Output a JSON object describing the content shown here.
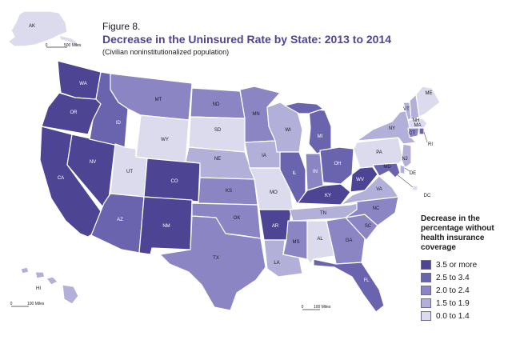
{
  "figure": {
    "label": "Figure 8.",
    "title": "Decrease in the Uninsured Rate by State: 2013 to 2014",
    "subtitle": "(Civilian noninstitutionalized population)"
  },
  "legend": {
    "title_lines": [
      "Decrease in the",
      "percentage without",
      "health insurance",
      "coverage"
    ],
    "items": [
      {
        "label": "3.5 or more",
        "color": "#4d4593"
      },
      {
        "label": "2.5 to 3.4",
        "color": "#6a63ad"
      },
      {
        "label": "2.0 to 2.4",
        "color": "#8b86c3"
      },
      {
        "label": "1.5 to 1.9",
        "color": "#b2afd8"
      },
      {
        "label": "0.0 to 1.4",
        "color": "#dcdbee"
      }
    ]
  },
  "scales": {
    "alaska": "500 Miles",
    "hawaii": "100 Miles",
    "mainland": "100 Miles",
    "zero": "0"
  },
  "states": {
    "AK": {
      "abbr": "AK",
      "class": 4
    },
    "HI": {
      "abbr": "HI",
      "class": 3
    },
    "WA": {
      "abbr": "WA",
      "class": 0
    },
    "OR": {
      "abbr": "OR",
      "class": 0
    },
    "CA": {
      "abbr": "CA",
      "class": 0
    },
    "NV": {
      "abbr": "NV",
      "class": 0
    },
    "ID": {
      "abbr": "ID",
      "class": 1
    },
    "MT": {
      "abbr": "MT",
      "class": 2
    },
    "WY": {
      "abbr": "WY",
      "class": 4
    },
    "UT": {
      "abbr": "UT",
      "class": 4
    },
    "AZ": {
      "abbr": "AZ",
      "class": 1
    },
    "CO": {
      "abbr": "CO",
      "class": 0
    },
    "NM": {
      "abbr": "NM",
      "class": 0
    },
    "ND": {
      "abbr": "ND",
      "class": 2
    },
    "SD": {
      "abbr": "SD",
      "class": 4
    },
    "NE": {
      "abbr": "NE",
      "class": 3
    },
    "KS": {
      "abbr": "KS",
      "class": 2
    },
    "OK": {
      "abbr": "OK",
      "class": 2
    },
    "TX": {
      "abbr": "TX",
      "class": 2
    },
    "MN": {
      "abbr": "MN",
      "class": 2
    },
    "IA": {
      "abbr": "IA",
      "class": 3
    },
    "MO": {
      "abbr": "MO",
      "class": 4
    },
    "AR": {
      "abbr": "AR",
      "class": 0
    },
    "LA": {
      "abbr": "LA",
      "class": 3
    },
    "WI": {
      "abbr": "WI",
      "class": 3
    },
    "IL": {
      "abbr": "IL",
      "class": 1
    },
    "MI": {
      "abbr": "MI",
      "class": 1
    },
    "IN": {
      "abbr": "IN",
      "class": 2
    },
    "OH": {
      "abbr": "OH",
      "class": 1
    },
    "KY": {
      "abbr": "KY",
      "class": 0
    },
    "TN": {
      "abbr": "TN",
      "class": 3
    },
    "MS": {
      "abbr": "MS",
      "class": 2
    },
    "AL": {
      "abbr": "AL",
      "class": 4
    },
    "GA": {
      "abbr": "GA",
      "class": 2
    },
    "FL": {
      "abbr": "FL",
      "class": 1
    },
    "SC": {
      "abbr": "SC",
      "class": 2
    },
    "NC": {
      "abbr": "NC",
      "class": 2
    },
    "VA": {
      "abbr": "VA",
      "class": 3
    },
    "WV": {
      "abbr": "WV",
      "class": 0
    },
    "PA": {
      "abbr": "PA",
      "class": 4
    },
    "NY": {
      "abbr": "NY",
      "class": 3
    },
    "VT": {
      "abbr": "VT",
      "class": 3
    },
    "NH": {
      "abbr": "NH",
      "class": 3
    },
    "ME": {
      "abbr": "ME",
      "class": 4
    },
    "MA": {
      "abbr": "MA",
      "class": 4
    },
    "RI": {
      "abbr": "RI",
      "class": 1
    },
    "CT": {
      "abbr": "CT",
      "class": 2
    },
    "NJ": {
      "abbr": "NJ",
      "class": 3
    },
    "DE": {
      "abbr": "DE",
      "class": 3
    },
    "MD": {
      "abbr": "MD",
      "class": 1
    },
    "DC": {
      "abbr": "DC",
      "class": 4
    }
  }
}
